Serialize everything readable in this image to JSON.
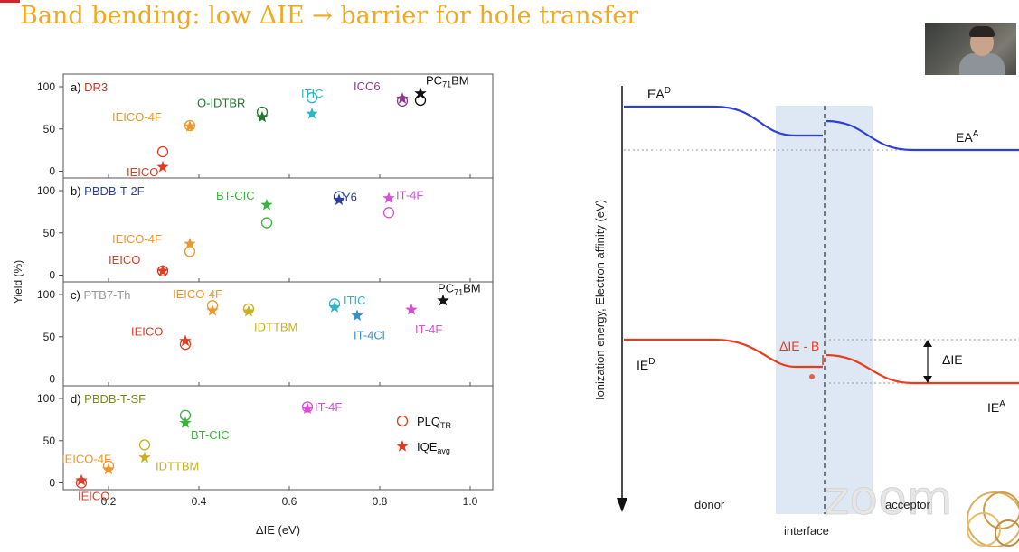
{
  "title": "Band bending: low ΔIE → barrier for hole transfer",
  "colors": {
    "title": "#f0a820",
    "panel_a_label": "#c0392b",
    "panel_b_label": "#2c3ea0",
    "panel_c_label": "#999999",
    "panel_d_label": "#7a8a1a"
  },
  "chart_data": [
    {
      "type": "scatter",
      "xlabel": "ΔIE (eV)",
      "ylabel": "Yield (%)",
      "xlim": [
        0.1,
        1.05
      ],
      "ylim": [
        -8,
        115
      ],
      "x_ticks": [
        0.2,
        0.4,
        0.6,
        0.8,
        1.0
      ],
      "x_tick_labels": [
        "0.2",
        "0.4",
        "0.6",
        "0.8",
        "1.0"
      ],
      "y_ticks": [
        0,
        50,
        100
      ],
      "legend": {
        "placement": "lower-right of panel d",
        "entries": [
          {
            "marker": "open-circle",
            "label": "PLQ",
            "sub": "TR"
          },
          {
            "marker": "star",
            "label": "IQE",
            "sub": "avg"
          }
        ]
      },
      "panels": [
        {
          "id": "a",
          "label": "a) DR3",
          "points": [
            {
              "name": "IEICO",
              "x": 0.32,
              "plq": 23,
              "iqe": 5,
              "color": "#e03c22"
            },
            {
              "name": "IEICO-4F",
              "x": 0.38,
              "plq": 54,
              "iqe": 53,
              "color": "#f0962a"
            },
            {
              "name": "O-IDTBR",
              "x": 0.54,
              "plq": 70,
              "iqe": 64,
              "color": "#1e7a2c"
            },
            {
              "name": "ITIC",
              "x": 0.65,
              "plq": 87,
              "iqe": 68,
              "color": "#2bb5c8"
            },
            {
              "name": "ICC6",
              "x": 0.85,
              "plq": 83,
              "iqe": 86,
              "color": "#8e3a8e"
            },
            {
              "name": "PC",
              "name_sub": "71",
              "name_suffix": "BM",
              "x": 0.89,
              "plq": 84,
              "iqe": 92,
              "color": "#111111"
            }
          ]
        },
        {
          "id": "b",
          "label": "b) PBDB-T-2F",
          "points": [
            {
              "name": "IEICO",
              "x": 0.32,
              "plq": 5,
              "iqe": 5,
              "color": "#e03c22"
            },
            {
              "name": "IEICO-4F",
              "x": 0.38,
              "plq": 28,
              "iqe": 37,
              "color": "#f0962a"
            },
            {
              "name": "BT-CIC",
              "x": 0.55,
              "plq": 62,
              "iqe": 83,
              "color": "#3cb33c"
            },
            {
              "name": "Y6",
              "x": 0.71,
              "plq": 93,
              "iqe": 89,
              "color": "#2c3ea0"
            },
            {
              "name": "IT-4F",
              "x": 0.82,
              "plq": 74,
              "iqe": 91,
              "color": "#d64fd6"
            }
          ]
        },
        {
          "id": "c",
          "label": "c) PTB7-Th",
          "points": [
            {
              "name": "IEICO",
              "x": 0.37,
              "plq": 41,
              "iqe": 45,
              "color": "#e03c22"
            },
            {
              "name": "IEICO-4F",
              "x": 0.43,
              "plq": 87,
              "iqe": 81,
              "color": "#f0962a"
            },
            {
              "name": "IDTTBM",
              "x": 0.51,
              "plq": 83,
              "iqe": 80,
              "color": "#c9b020"
            },
            {
              "name": "ITIC",
              "x": 0.7,
              "plq": 89,
              "iqe": 85,
              "color": "#2bb5c8"
            },
            {
              "name": "IT-4Cl",
              "x": 0.75,
              "plq": null,
              "iqe": 75,
              "color": "#3590d0"
            },
            {
              "name": "IT-4F",
              "x": 0.87,
              "plq": null,
              "iqe": 82,
              "color": "#d64fd6"
            },
            {
              "name": "PC",
              "name_sub": "71",
              "name_suffix": "BM",
              "x": 0.94,
              "plq": null,
              "iqe": 93,
              "color": "#111111"
            }
          ]
        },
        {
          "id": "d",
          "label": "d) PBDB-T-SF",
          "points": [
            {
              "name": "IEICO",
              "x": 0.14,
              "plq": 0,
              "iqe": 3,
              "color": "#e03c22"
            },
            {
              "name": "IEICO-4F",
              "x": 0.2,
              "plq": 20,
              "iqe": 16,
              "color": "#f0962a"
            },
            {
              "name": "IDTTBM",
              "x": 0.28,
              "plq": 45,
              "iqe": 30,
              "color": "#c9b020"
            },
            {
              "name": "BT-CIC",
              "x": 0.37,
              "plq": 80,
              "iqe": 71,
              "color": "#3cb33c"
            },
            {
              "name": "IT-4F",
              "x": 0.64,
              "plq": 90,
              "iqe": 88,
              "color": "#d64fd6"
            }
          ]
        }
      ]
    },
    {
      "type": "diagram",
      "y_axis_label": "Ionization energy, Electron affinity (eV)",
      "labels": {
        "ea_donor": "EA",
        "ea_donor_sup": "D",
        "ea_acceptor": "EA",
        "ea_acceptor_sup": "A",
        "ie_donor": "IE",
        "ie_donor_sup": "D",
        "ie_acceptor": "IE",
        "ie_acceptor_sup": "A",
        "delta_ie": "ΔIE",
        "delta_ie_b": "ΔIE - B",
        "donor": "donor",
        "interface": "interface",
        "acceptor": "acceptor"
      },
      "colors": {
        "ea": "#2f3fd8",
        "ie": "#ee3a1c",
        "interface": "#dde8f4"
      }
    }
  ],
  "watermark": "zoom"
}
